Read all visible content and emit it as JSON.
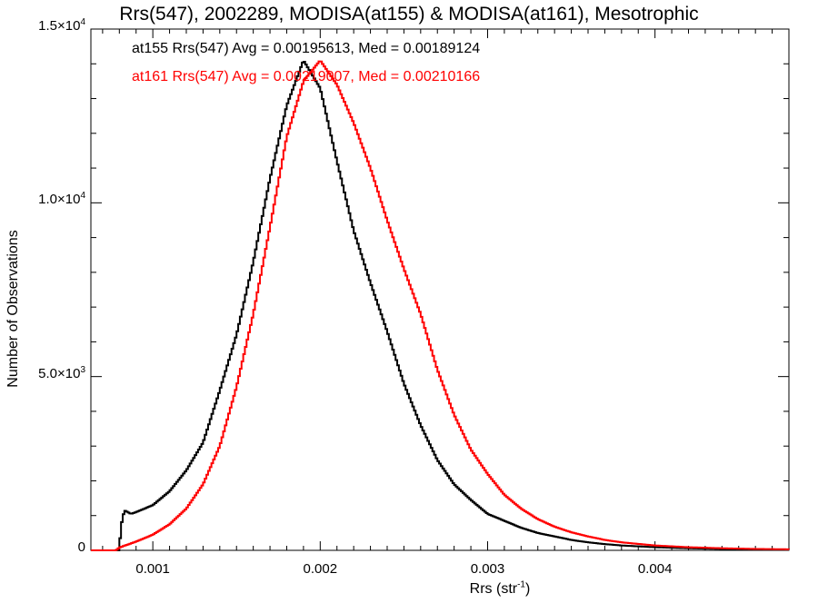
{
  "chart_data": {
    "type": "line",
    "title": "Rrs(547), 2002289, MODISA(at155) & MODISA(at161), Mesotrophic",
    "xlabel": "Rrs (str",
    "xlabel_sup": "-1",
    "xlabel_end": ")",
    "ylabel": "Number of Observations",
    "xlim": [
      0.00063,
      0.0048
    ],
    "ylim": [
      0,
      15000
    ],
    "x_ticks": [
      {
        "value": 0.001,
        "label": "0.001"
      },
      {
        "value": 0.002,
        "label": "0.002"
      },
      {
        "value": 0.003,
        "label": "0.003"
      },
      {
        "value": 0.004,
        "label": "0.004"
      }
    ],
    "y_ticks": [
      {
        "value": 0,
        "mant": "0",
        "exp": ""
      },
      {
        "value": 5000,
        "mant": "5.0×10",
        "exp": "3"
      },
      {
        "value": 10000,
        "mant": "1.0×10",
        "exp": "4"
      },
      {
        "value": 15000,
        "mant": "1.5×10",
        "exp": "4"
      }
    ],
    "annotations": [
      {
        "text": "at155 Rrs(547) Avg = 0.00195613, Med = 0.00189124",
        "color": "#000000"
      },
      {
        "text": "at161 Rrs(547) Avg = 0.00219007, Med = 0.00210166",
        "color": "#ff0000"
      }
    ],
    "series": [
      {
        "color": "#000000",
        "x": [
          0.00063,
          0.0008,
          0.00081,
          0.00083,
          0.00087,
          0.0009,
          0.001,
          0.0011,
          0.0012,
          0.0013,
          0.0014,
          0.0015,
          0.0016,
          0.0017,
          0.0018,
          0.0019,
          0.002,
          0.0021,
          0.0022,
          0.0023,
          0.0024,
          0.0025,
          0.0026,
          0.0027,
          0.0028,
          0.0029,
          0.003,
          0.0031,
          0.0032,
          0.0033,
          0.0034,
          0.0035,
          0.0036,
          0.0037,
          0.0038,
          0.004,
          0.0042,
          0.0044,
          0.0046,
          0.0048
        ],
        "y": [
          0,
          0,
          700,
          1150,
          1050,
          1100,
          1300,
          1700,
          2300,
          3100,
          4600,
          6200,
          8300,
          10700,
          12800,
          14100,
          13300,
          11200,
          9200,
          7700,
          6300,
          4800,
          3600,
          2600,
          1900,
          1450,
          1050,
          850,
          650,
          500,
          400,
          300,
          230,
          180,
          140,
          90,
          60,
          40,
          30,
          20
        ]
      },
      {
        "color": "#ff0000",
        "x": [
          0.00063,
          0.00078,
          0.0008,
          0.0009,
          0.001,
          0.0011,
          0.0012,
          0.0013,
          0.0014,
          0.0015,
          0.0016,
          0.0017,
          0.0018,
          0.0019,
          0.002,
          0.0021,
          0.0022,
          0.0023,
          0.0024,
          0.0025,
          0.0026,
          0.0027,
          0.0028,
          0.0029,
          0.003,
          0.0031,
          0.0032,
          0.0033,
          0.0034,
          0.0035,
          0.0036,
          0.0037,
          0.0038,
          0.004,
          0.0042,
          0.0044,
          0.0046,
          0.0048
        ],
        "y": [
          0,
          0,
          80,
          250,
          450,
          750,
          1200,
          1900,
          3000,
          4700,
          6800,
          9300,
          11900,
          13500,
          14100,
          13400,
          12300,
          11000,
          9500,
          8100,
          6800,
          5200,
          3900,
          2900,
          2200,
          1600,
          1200,
          900,
          680,
          520,
          400,
          300,
          230,
          140,
          90,
          60,
          40,
          30
        ]
      }
    ]
  }
}
